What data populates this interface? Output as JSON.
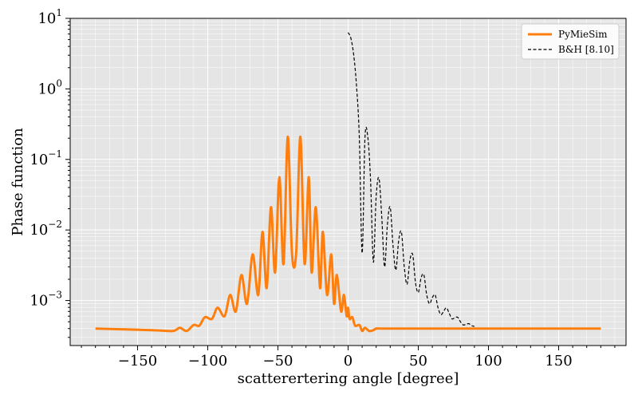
{
  "chart_data": {
    "type": "line",
    "xlabel": "scatterertering angle [degree]",
    "ylabel": "Phase function",
    "x_scale": "linear",
    "y_scale": "log",
    "xlim": [
      -198,
      198
    ],
    "ylim": [
      0.00023,
      10
    ],
    "x_ticks": [
      -150,
      -100,
      -50,
      0,
      50,
      100,
      150
    ],
    "x_tick_labels": [
      "−150",
      "−100",
      "−50",
      "0",
      "50",
      "100",
      "150"
    ],
    "y_tick_exponents": [
      -3,
      -2,
      -1,
      0,
      1
    ],
    "grid": true,
    "background": "#e5e5e5",
    "legend_position": "top-right",
    "series": [
      {
        "name": "PyMieSim",
        "color": "#ff7f0e",
        "style": "solid",
        "x": [
          -180,
          -140,
          -125,
          -120,
          -115,
          -110,
          -106,
          -102,
          -97,
          -93,
          -88,
          -84,
          -80,
          -76,
          -72,
          -68,
          -64,
          -61,
          -58,
          -55,
          -52,
          -49,
          -46,
          -43,
          -40,
          -37,
          -34,
          -31,
          -28,
          -26,
          -23,
          -20,
          -18,
          -15,
          -12,
          -10,
          -8,
          -5,
          -3,
          -1,
          0,
          1,
          3,
          5,
          8,
          10,
          12,
          15,
          18,
          20,
          23,
          26,
          28,
          31,
          34,
          37,
          40,
          43,
          46,
          49,
          52,
          55,
          58,
          61,
          64,
          68,
          72,
          76,
          80,
          84,
          88,
          93,
          97,
          102,
          106,
          110,
          115,
          120,
          125,
          140,
          180
        ],
        "y": [
          0.0004,
          0.00038,
          0.00037,
          0.00041,
          0.00037,
          0.00045,
          0.00044,
          0.00058,
          0.00055,
          0.00079,
          0.0006,
          0.0012,
          0.0007,
          0.0023,
          0.0009,
          0.0045,
          0.0012,
          0.0094,
          0.0015,
          0.021,
          0.0025,
          0.056,
          0.0033,
          0.21,
          0.0047,
          0.0047,
          0.21,
          0.0033,
          0.056,
          0.0025,
          0.021,
          0.0015,
          0.0094,
          0.0012,
          0.0045,
          0.0009,
          0.0023,
          0.0007,
          0.0012,
          0.0006,
          0.00079,
          0.00055,
          0.00058,
          0.00044,
          0.00045,
          0.00037,
          0.00041,
          0.00037,
          0.00038,
          0.0004,
          0.0004,
          0.0004,
          0.0004,
          0.0004,
          0.0004,
          0.0004,
          0.0004,
          0.0004,
          0.0004,
          0.0004,
          0.0004,
          0.0004,
          0.0004,
          0.0004,
          0.0004,
          0.0004,
          0.0004,
          0.0004,
          0.0004,
          0.0004,
          0.0004,
          0.0004,
          0.0004,
          0.0004,
          0.0004,
          0.0004,
          0.0004,
          0.0004,
          0.0004,
          0.0004,
          0.0004
        ]
      },
      {
        "name": "B&H [8.10]",
        "color": "#000000",
        "style": "dashed",
        "x": [
          0,
          2,
          4,
          6,
          8,
          10,
          12,
          14,
          16,
          18,
          20,
          22,
          24,
          26,
          28,
          30,
          32,
          34,
          36,
          38,
          40,
          42,
          44,
          46,
          48,
          50,
          52,
          54,
          56,
          58,
          60,
          62,
          64,
          66,
          68,
          70,
          72,
          74,
          76,
          78,
          80,
          82,
          84,
          86,
          88,
          90
        ],
        "y": [
          6.3,
          5.2,
          3.0,
          1.1,
          0.2,
          0.0047,
          0.2,
          0.21,
          0.05,
          0.0035,
          0.03,
          0.054,
          0.015,
          0.003,
          0.012,
          0.021,
          0.006,
          0.0027,
          0.007,
          0.0093,
          0.003,
          0.0017,
          0.0037,
          0.0045,
          0.0018,
          0.0013,
          0.0021,
          0.0023,
          0.0012,
          0.0009,
          0.0011,
          0.0012,
          0.0008,
          0.00063,
          0.0007,
          0.00079,
          0.00066,
          0.00055,
          0.00057,
          0.00058,
          0.0005,
          0.00045,
          0.00046,
          0.00047,
          0.00044,
          0.00043
        ]
      }
    ]
  }
}
